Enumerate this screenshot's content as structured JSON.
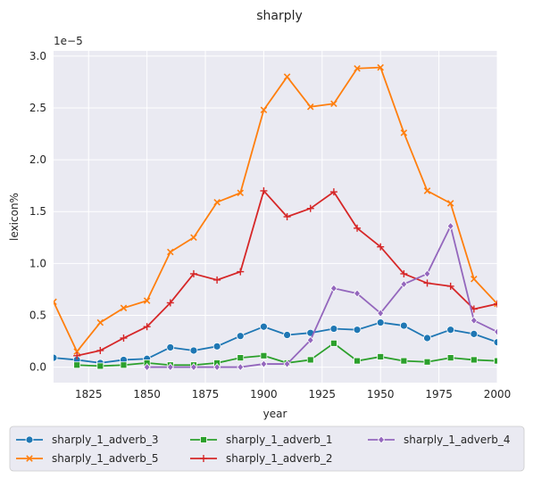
{
  "chart_data": {
    "type": "line",
    "title": "sharply",
    "xlabel": "year",
    "ylabel": "lexicon%",
    "y_offset_label": "1e−5",
    "xlim": [
      1810,
      2000
    ],
    "ylim": [
      -0.15,
      3.05
    ],
    "x_ticks": [
      1825,
      1850,
      1875,
      1900,
      1925,
      1950,
      1975,
      2000
    ],
    "y_ticks": [
      0.0,
      0.5,
      1.0,
      1.5,
      2.0,
      2.5,
      3.0
    ],
    "y_tick_labels": [
      "0.0",
      "0.5",
      "1.0",
      "1.5",
      "2.0",
      "2.5",
      "3.0"
    ],
    "grid": true,
    "legend_placement": "bottom-center",
    "series": [
      {
        "name": "sharply_1_adverb_3",
        "color": "#1f77b4",
        "marker": "circle",
        "x": [
          1810,
          1820,
          1830,
          1840,
          1850,
          1860,
          1870,
          1880,
          1890,
          1900,
          1910,
          1920,
          1930,
          1940,
          1950,
          1960,
          1970,
          1980,
          1990,
          2000
        ],
        "y": [
          0.09,
          0.07,
          0.04,
          0.07,
          0.08,
          0.19,
          0.16,
          0.2,
          0.3,
          0.39,
          0.31,
          0.33,
          0.37,
          0.36,
          0.43,
          0.4,
          0.28,
          0.36,
          0.32,
          0.24
        ]
      },
      {
        "name": "sharply_1_adverb_5",
        "color": "#ff7f0e",
        "marker": "x",
        "x": [
          1810,
          1820,
          1830,
          1840,
          1850,
          1860,
          1870,
          1880,
          1890,
          1900,
          1910,
          1920,
          1930,
          1940,
          1950,
          1960,
          1970,
          1980,
          1990,
          2000
        ],
        "y": [
          0.63,
          0.15,
          0.43,
          0.57,
          0.64,
          1.11,
          1.25,
          1.59,
          1.68,
          2.48,
          2.8,
          2.51,
          2.54,
          2.88,
          2.89,
          2.26,
          1.7,
          1.58,
          0.85,
          0.61
        ]
      },
      {
        "name": "sharply_1_adverb_1",
        "color": "#2ca02c",
        "marker": "square",
        "x": [
          1820,
          1830,
          1840,
          1850,
          1860,
          1870,
          1880,
          1890,
          1900,
          1910,
          1920,
          1930,
          1940,
          1950,
          1960,
          1970,
          1980,
          1990,
          2000
        ],
        "y": [
          0.02,
          0.01,
          0.02,
          0.04,
          0.02,
          0.02,
          0.04,
          0.09,
          0.11,
          0.04,
          0.07,
          0.23,
          0.06,
          0.1,
          0.06,
          0.05,
          0.09,
          0.07,
          0.06
        ]
      },
      {
        "name": "sharply_1_adverb_2",
        "color": "#d62728",
        "marker": "plus",
        "x": [
          1820,
          1830,
          1840,
          1850,
          1860,
          1870,
          1880,
          1890,
          1900,
          1910,
          1920,
          1930,
          1940,
          1950,
          1960,
          1970,
          1980,
          1990,
          2000
        ],
        "y": [
          0.11,
          0.16,
          0.28,
          0.39,
          0.62,
          0.9,
          0.84,
          0.92,
          1.7,
          1.45,
          1.53,
          1.69,
          1.34,
          1.16,
          0.9,
          0.81,
          0.78,
          0.56,
          0.61
        ]
      },
      {
        "name": "sharply_1_adverb_4",
        "color": "#9467bd",
        "marker": "diamond",
        "x": [
          1850,
          1860,
          1870,
          1880,
          1890,
          1900,
          1910,
          1920,
          1930,
          1940,
          1950,
          1960,
          1970,
          1980,
          1990,
          2000
        ],
        "y": [
          0.0,
          0.0,
          0.0,
          0.0,
          0.0,
          0.03,
          0.03,
          0.26,
          0.76,
          0.71,
          0.52,
          0.8,
          0.9,
          1.36,
          0.45,
          0.34
        ]
      }
    ],
    "legend_order": [
      0,
      1,
      2,
      3,
      4
    ]
  },
  "colors": {
    "plot_background": "#eaeaf2",
    "grid": "#ffffff",
    "text": "#262626"
  }
}
